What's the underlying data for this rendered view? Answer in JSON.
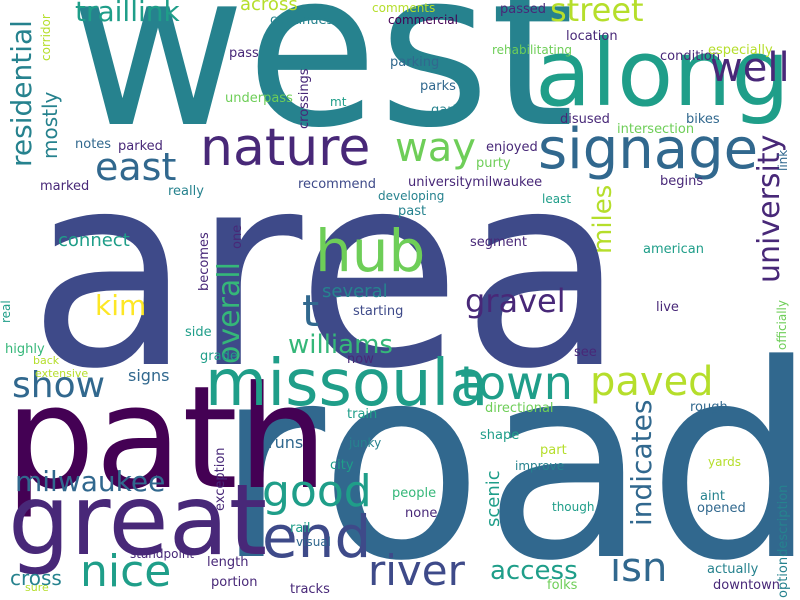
{
  "palette": {
    "dark_purple": "#440154",
    "indigo": "#482878",
    "royal_blue": "#3e4a89",
    "slate_blue": "#31688e",
    "teal_blue": "#26828e",
    "teal": "#1f9e89",
    "green": "#35b779",
    "light_green": "#6ece58",
    "yellow_green": "#b5de2b",
    "yellow": "#fde725"
  },
  "words": [
    {
      "text": "area",
      "color": "royal_blue"
    },
    {
      "text": "road",
      "color": "slate_blue"
    },
    {
      "text": "west",
      "color": "teal_blue"
    },
    {
      "text": "path",
      "color": "dark_purple"
    },
    {
      "text": "great",
      "color": "indigo"
    },
    {
      "text": "along",
      "color": "teal"
    },
    {
      "text": "missoula",
      "color": "teal"
    },
    {
      "text": "signage",
      "color": "slate_blue"
    },
    {
      "text": "nature",
      "color": "indigo"
    },
    {
      "text": "end",
      "color": "royal_blue"
    },
    {
      "text": "hub",
      "color": "light_green"
    },
    {
      "text": "river",
      "color": "royal_blue"
    },
    {
      "text": "town",
      "color": "teal"
    },
    {
      "text": "paved",
      "color": "yellow_green"
    },
    {
      "text": "good",
      "color": "teal"
    },
    {
      "text": "nice",
      "color": "teal"
    },
    {
      "text": "isn",
      "color": "slate_blue"
    },
    {
      "text": "show",
      "color": "slate_blue"
    },
    {
      "text": "well",
      "color": "indigo"
    },
    {
      "text": "way",
      "color": "light_green"
    },
    {
      "text": "east",
      "color": "slate_blue"
    },
    {
      "text": "street",
      "color": "yellow_green"
    },
    {
      "text": "residential",
      "color": "teal_blue"
    },
    {
      "text": "traillink",
      "color": "teal"
    },
    {
      "text": "gravel",
      "color": "indigo"
    },
    {
      "text": "williams",
      "color": "green"
    },
    {
      "text": "milwaukee",
      "color": "slate_blue"
    },
    {
      "text": "overall",
      "color": "green"
    },
    {
      "text": "university",
      "color": "indigo"
    },
    {
      "text": "indicates",
      "color": "slate_blue"
    },
    {
      "text": "access",
      "color": "teal"
    },
    {
      "text": "miles",
      "color": "yellow_green"
    },
    {
      "text": "t",
      "color": "slate_blue"
    },
    {
      "text": "kim",
      "color": "yellow"
    },
    {
      "text": "several",
      "color": "teal_blue"
    },
    {
      "text": "connect",
      "color": "teal"
    },
    {
      "text": "mostly",
      "color": "teal_blue"
    },
    {
      "text": "scenic",
      "color": "teal"
    },
    {
      "text": "cross",
      "color": "teal_blue"
    },
    {
      "text": "runs",
      "color": "slate_blue"
    },
    {
      "text": "signs",
      "color": "slate_blue"
    },
    {
      "text": "across",
      "color": "yellow_green"
    },
    {
      "text": "enjoyed",
      "color": "indigo"
    },
    {
      "text": "purty",
      "color": "light_green"
    },
    {
      "text": "universitymilwaukee",
      "color": "indigo"
    },
    {
      "text": "parks",
      "color": "slate_blue"
    },
    {
      "text": "parking",
      "color": "slate_blue"
    },
    {
      "text": "gart",
      "color": "teal_blue"
    },
    {
      "text": "bikes",
      "color": "slate_blue"
    },
    {
      "text": "intersection",
      "color": "light_green"
    },
    {
      "text": "disused",
      "color": "indigo"
    },
    {
      "text": "condition",
      "color": "indigo"
    },
    {
      "text": "location",
      "color": "indigo"
    },
    {
      "text": "especially",
      "color": "yellow_green"
    },
    {
      "text": "rehabilitating",
      "color": "light_green"
    },
    {
      "text": "commercial",
      "color": "dark_purple"
    },
    {
      "text": "comments",
      "color": "yellow_green"
    },
    {
      "text": "passed",
      "color": "indigo"
    },
    {
      "text": "continues",
      "color": "teal_blue"
    },
    {
      "text": "pass",
      "color": "indigo"
    },
    {
      "text": "underpass",
      "color": "light_green"
    },
    {
      "text": "crossings",
      "color": "indigo"
    },
    {
      "text": "mt",
      "color": "teal"
    },
    {
      "text": "notes",
      "color": "slate_blue"
    },
    {
      "text": "parked",
      "color": "indigo"
    },
    {
      "text": "marked",
      "color": "indigo"
    },
    {
      "text": "really",
      "color": "teal_blue"
    },
    {
      "text": "recommend",
      "color": "royal_blue"
    },
    {
      "text": "developing",
      "color": "teal_blue"
    },
    {
      "text": "least",
      "color": "teal"
    },
    {
      "text": "begins",
      "color": "indigo"
    },
    {
      "text": "past",
      "color": "teal_blue"
    },
    {
      "text": "segment",
      "color": "indigo"
    },
    {
      "text": "american",
      "color": "teal"
    },
    {
      "text": "live",
      "color": "indigo"
    },
    {
      "text": "starting",
      "color": "royal_blue"
    },
    {
      "text": "grade",
      "color": "teal"
    },
    {
      "text": "side",
      "color": "teal"
    },
    {
      "text": "becomes",
      "color": "indigo"
    },
    {
      "text": "one",
      "color": "indigo"
    },
    {
      "text": "now",
      "color": "indigo"
    },
    {
      "text": "see",
      "color": "indigo"
    },
    {
      "text": "train",
      "color": "teal"
    },
    {
      "text": "directional",
      "color": "light_green"
    },
    {
      "text": "rough",
      "color": "slate_blue"
    },
    {
      "text": "junky",
      "color": "teal_blue"
    },
    {
      "text": "city",
      "color": "teal"
    },
    {
      "text": "exception",
      "color": "indigo"
    },
    {
      "text": "shape",
      "color": "teal"
    },
    {
      "text": "part",
      "color": "yellow_green"
    },
    {
      "text": "improve",
      "color": "teal_blue"
    },
    {
      "text": "yards",
      "color": "yellow_green"
    },
    {
      "text": "aint",
      "color": "teal_blue"
    },
    {
      "text": "opened",
      "color": "slate_blue"
    },
    {
      "text": "people",
      "color": "green"
    },
    {
      "text": "none",
      "color": "indigo"
    },
    {
      "text": "though",
      "color": "teal"
    },
    {
      "text": "rail",
      "color": "teal"
    },
    {
      "text": "visual",
      "color": "slate_blue"
    },
    {
      "text": "standpoint",
      "color": "indigo"
    },
    {
      "text": "length",
      "color": "indigo"
    },
    {
      "text": "portion",
      "color": "indigo"
    },
    {
      "text": "tracks",
      "color": "indigo"
    },
    {
      "text": "folks",
      "color": "light_green"
    },
    {
      "text": "actually",
      "color": "teal_blue"
    },
    {
      "text": "downtown",
      "color": "indigo"
    },
    {
      "text": "sure",
      "color": "yellow_green"
    },
    {
      "text": "extensive",
      "color": "yellow_green"
    },
    {
      "text": "back",
      "color": "yellow_green"
    },
    {
      "text": "highly",
      "color": "green"
    },
    {
      "text": "real",
      "color": "teal"
    },
    {
      "text": "corridor",
      "color": "yellow_green"
    },
    {
      "text": "link",
      "color": "slate_blue"
    },
    {
      "text": "officially",
      "color": "light_green"
    },
    {
      "text": "optiondescription",
      "color": "teal_blue"
    }
  ]
}
